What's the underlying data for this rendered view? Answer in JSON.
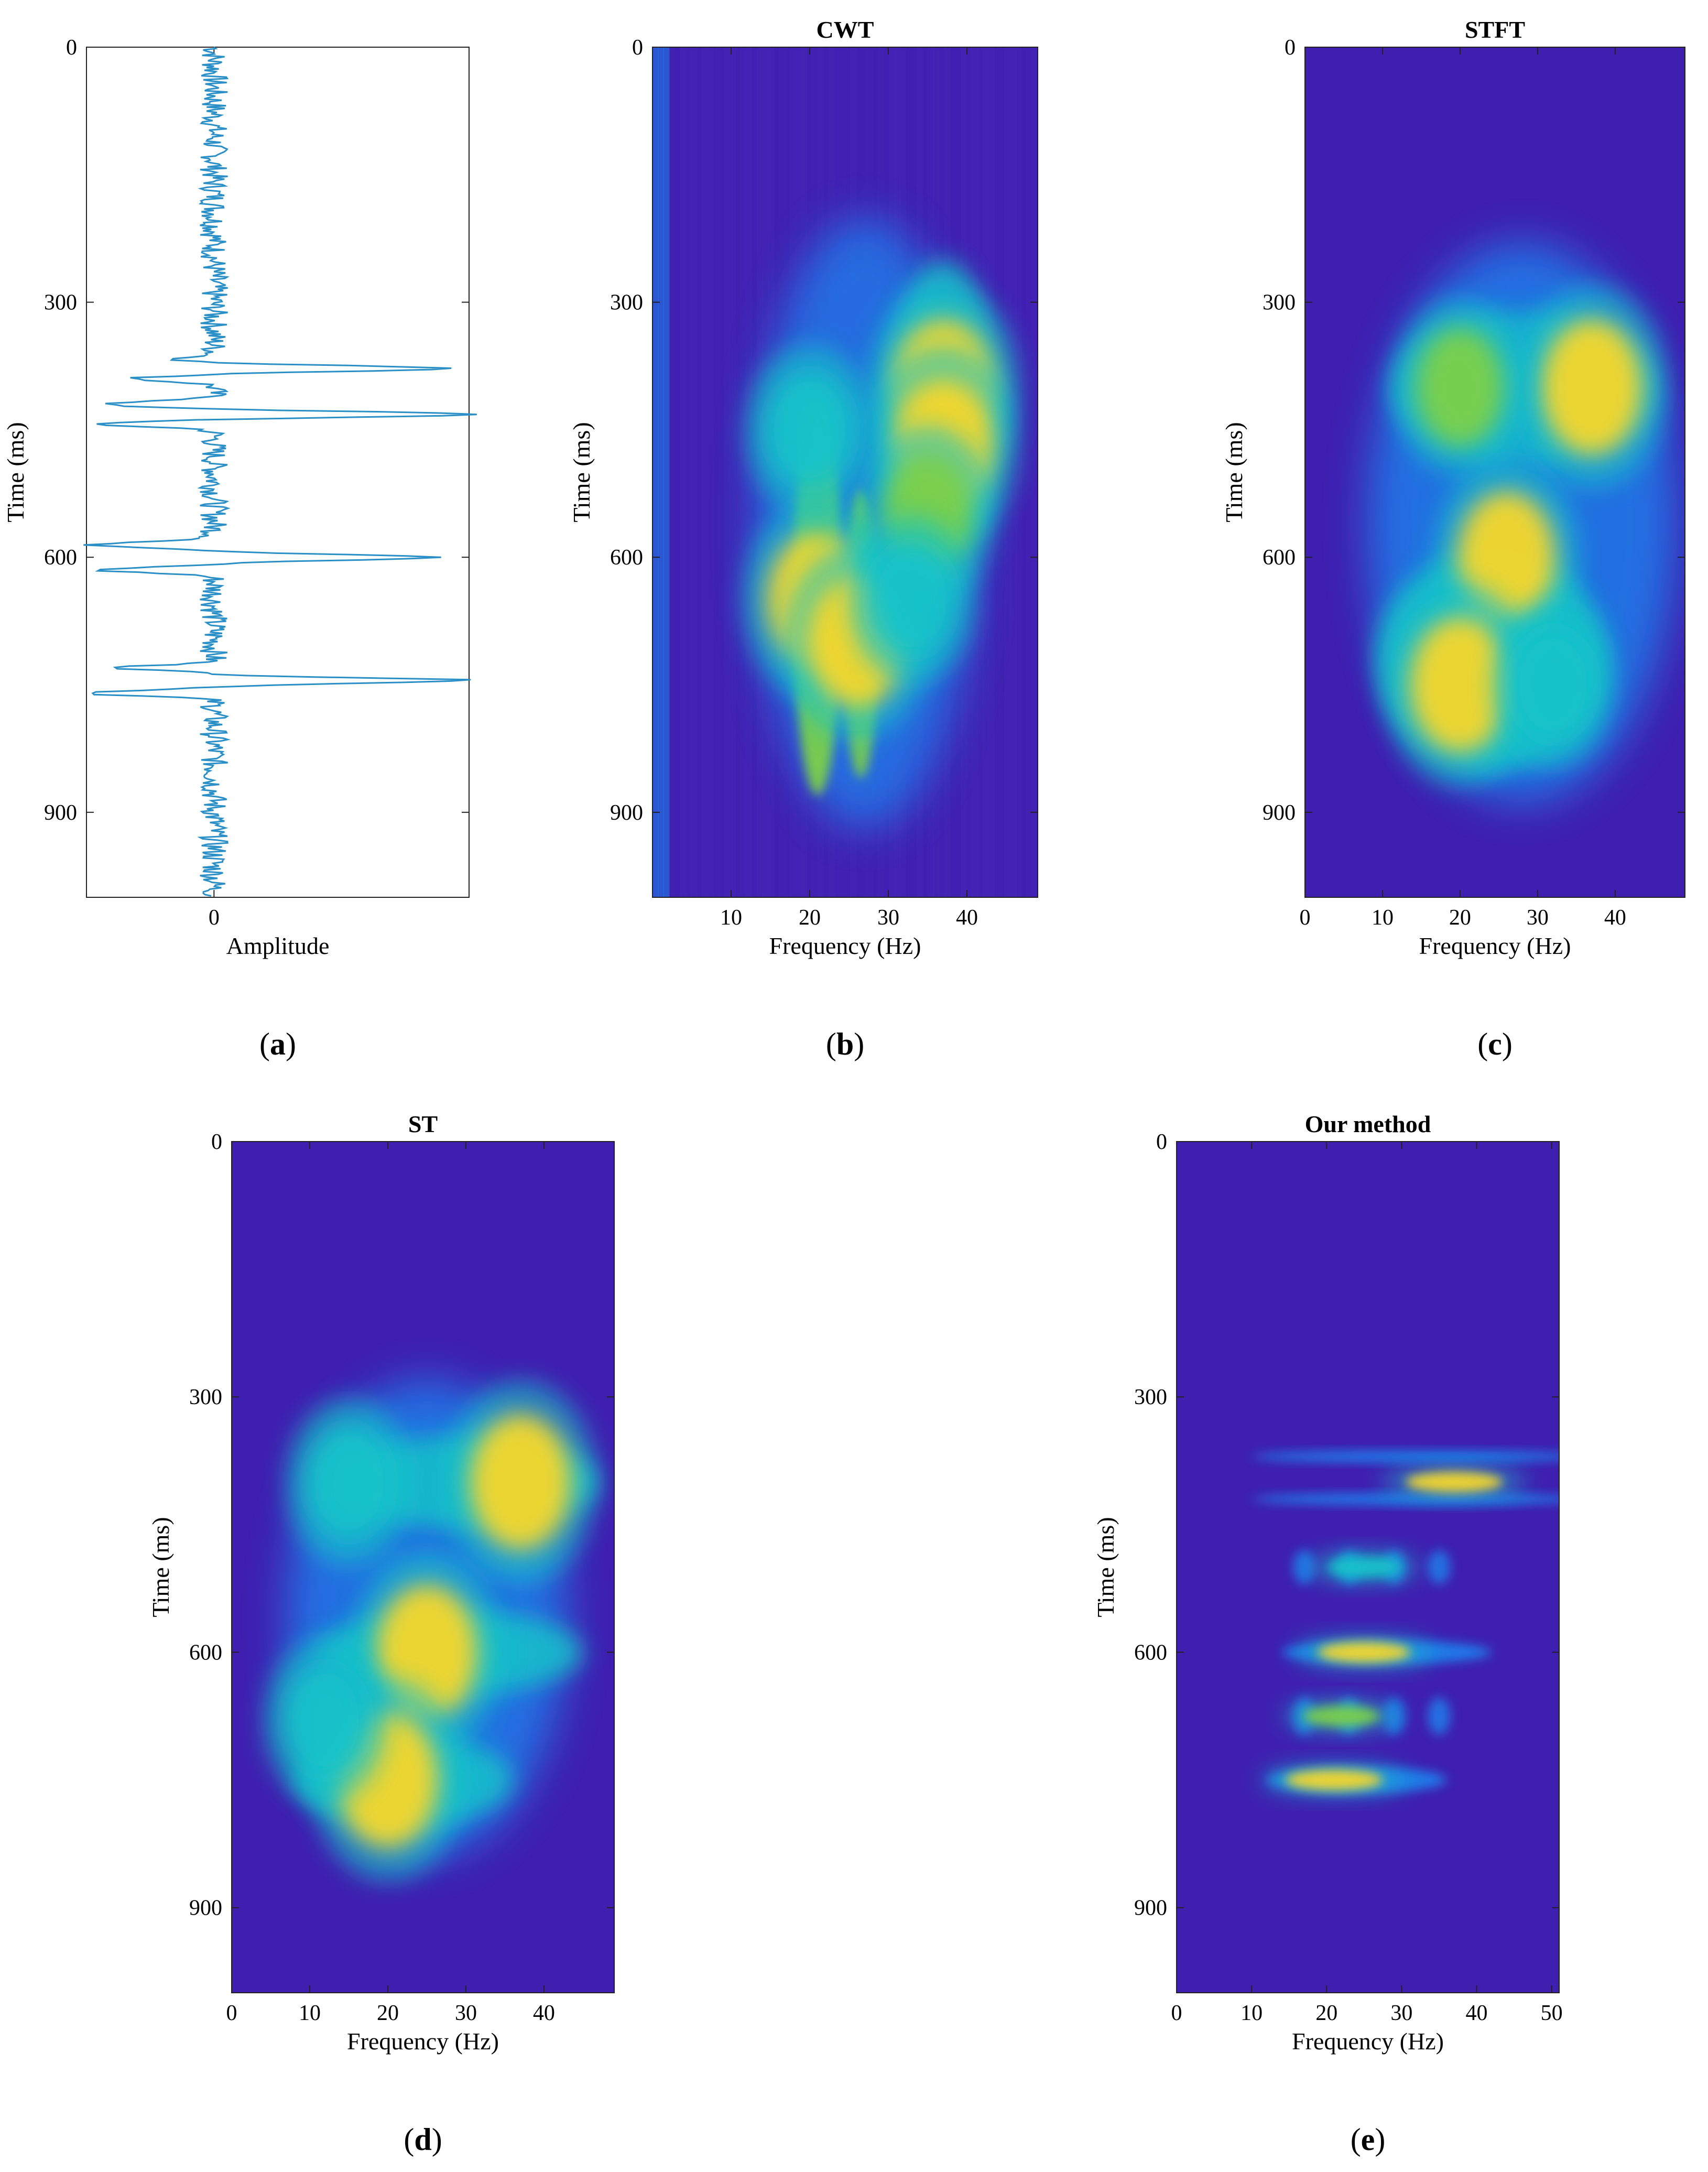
{
  "colors": {
    "bg_low": "#3f1fb0",
    "mid_blue": "#1d84ee",
    "cyan": "#18c3c9",
    "green": "#7cd049",
    "yellow": "#f7d72a",
    "signal": "#2a8fc6"
  },
  "chart_data": [
    {
      "id": "a",
      "type": "line",
      "title": "",
      "xlabel": "Amplitude",
      "ylabel": "Time (ms)",
      "xlim": [
        -1,
        2
      ],
      "ylim": [
        0,
        1000
      ],
      "xticks": [
        0
      ],
      "yticks": [
        0,
        300,
        600,
        900
      ],
      "caption": "a",
      "reflections": [
        {
          "time": 368,
          "amp": -0.25
        },
        {
          "time": 378,
          "amp": 1.9
        },
        {
          "time": 390,
          "amp": -0.6
        },
        {
          "time": 420,
          "amp": -0.9
        },
        {
          "time": 432,
          "amp": 2.0
        },
        {
          "time": 443,
          "amp": -0.95
        },
        {
          "time": 585,
          "amp": -0.95
        },
        {
          "time": 600,
          "amp": 1.8
        },
        {
          "time": 615,
          "amp": -0.9
        },
        {
          "time": 730,
          "amp": -0.7
        },
        {
          "time": 745,
          "amp": 2.0
        },
        {
          "time": 760,
          "amp": -0.95
        }
      ]
    },
    {
      "id": "b",
      "type": "heatmap",
      "title": "CWT",
      "xlabel": "Frequency (Hz)",
      "ylabel": "Time (ms)",
      "xlim": [
        0,
        49
      ],
      "ylim": [
        0,
        1000
      ],
      "xticks": [
        10,
        20,
        30,
        40
      ],
      "yticks": [
        0,
        300,
        600,
        900
      ],
      "caption": "b",
      "blobs": [
        {
          "f": 37,
          "t": 400,
          "intensity": 1.0
        },
        {
          "f": 37,
          "t": 470,
          "intensity": 0.95
        },
        {
          "f": 21,
          "t": 650,
          "intensity": 0.95
        },
        {
          "f": 26,
          "t": 700,
          "intensity": 0.85
        },
        {
          "f": 35,
          "t": 550,
          "intensity": 0.6
        },
        {
          "f": 20,
          "t": 450,
          "intensity": 0.5
        },
        {
          "f": 33,
          "t": 650,
          "intensity": 0.45
        }
      ]
    },
    {
      "id": "c",
      "type": "heatmap",
      "title": "STFT",
      "xlabel": "Frequency (Hz)",
      "ylabel": "Time (ms)",
      "xlim": [
        0,
        49
      ],
      "ylim": [
        0,
        1000
      ],
      "xticks": [
        0,
        10,
        20,
        30,
        40
      ],
      "yticks": [
        0,
        300,
        600,
        900
      ],
      "caption": "c",
      "blobs": [
        {
          "f": 37,
          "t": 400,
          "intensity": 1.0
        },
        {
          "f": 20,
          "t": 400,
          "intensity": 0.6
        },
        {
          "f": 26,
          "t": 600,
          "intensity": 0.9
        },
        {
          "f": 20,
          "t": 750,
          "intensity": 1.0
        },
        {
          "f": 32,
          "t": 750,
          "intensity": 0.4
        }
      ]
    },
    {
      "id": "d",
      "type": "heatmap",
      "title": "ST",
      "xlabel": "Frequency (Hz)",
      "ylabel": "Time (ms)",
      "xlim": [
        0,
        49
      ],
      "ylim": [
        0,
        1000
      ],
      "xticks": [
        0,
        10,
        20,
        30,
        40
      ],
      "yticks": [
        0,
        300,
        600,
        900
      ],
      "caption": "d",
      "blobs": [
        {
          "f": 37,
          "t": 400,
          "intensity": 1.0
        },
        {
          "f": 25,
          "t": 600,
          "intensity": 1.0
        },
        {
          "f": 20,
          "t": 750,
          "intensity": 1.0
        },
        {
          "f": 15,
          "t": 400,
          "intensity": 0.45
        },
        {
          "f": 12,
          "t": 680,
          "intensity": 0.4
        }
      ]
    },
    {
      "id": "e",
      "type": "heatmap",
      "title": "Our method",
      "xlabel": "Frequency (Hz)",
      "ylabel": "Time (ms)",
      "xlim": [
        0,
        51
      ],
      "ylim": [
        0,
        1000
      ],
      "xticks": [
        0,
        10,
        20,
        30,
        40,
        50
      ],
      "yticks": [
        0,
        300,
        600,
        900
      ],
      "caption": "e",
      "blobs": [
        {
          "f": 37,
          "t": 400,
          "intensity": 1.0
        },
        {
          "f": 25,
          "t": 600,
          "intensity": 0.9
        },
        {
          "f": 21,
          "t": 750,
          "intensity": 1.0
        },
        {
          "f": 25,
          "t": 500,
          "intensity": 0.45
        },
        {
          "f": 22,
          "t": 675,
          "intensity": 0.55
        }
      ]
    }
  ]
}
